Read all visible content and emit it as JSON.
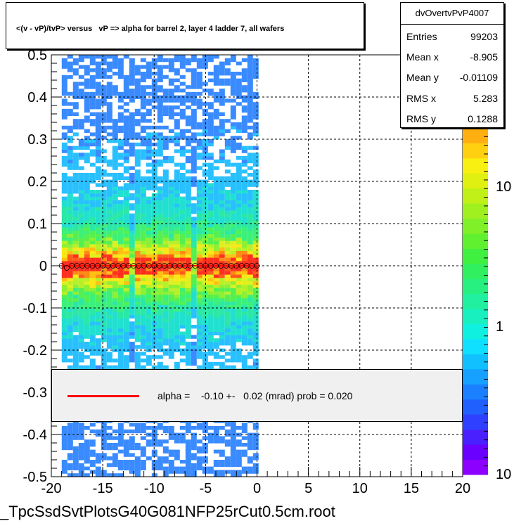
{
  "title": "<(v - vP)/tvP> versus   vP => alpha for barrel 2, layer 4 ladder 7, all wafers",
  "stats": {
    "name": "dvOvertvPvP4007",
    "rows": [
      {
        "key": "Entries",
        "value": "99203"
      },
      {
        "key": "Mean x",
        "value": "-8.905"
      },
      {
        "key": "Mean y",
        "value": "-0.01109"
      },
      {
        "key": "RMS x",
        "value": "5.283"
      },
      {
        "key": "RMS y",
        "value": "0.1288"
      }
    ]
  },
  "legend": {
    "text": "alpha =    -0.10 +-   0.02 (mrad) prob = 0.020",
    "line_color": "#ff0000"
  },
  "footer": "_TpcSsdSvtPlotsG40G081NFP25rCut0.5cm.root",
  "chart_data": {
    "type": "heatmap",
    "xlim": [
      -20,
      20
    ],
    "ylim": [
      -0.5,
      0.5
    ],
    "x_ticks": [
      "-20",
      "-15",
      "-10",
      "-5",
      "0",
      "5",
      "10",
      "15",
      "20"
    ],
    "y_ticks": [
      "0.5",
      "0.4",
      "0.3",
      "0.2",
      "0.1",
      "0",
      "-0.1",
      "-0.2",
      "-0.3",
      "-0.4",
      "-0.5"
    ],
    "grid": true,
    "colorbar_labels": [
      "10",
      "1",
      "10"
    ],
    "filled_x_range": [
      -19,
      0
    ],
    "profile_x": [
      -19.0,
      -18.5,
      -18.0,
      -17.5,
      -17.0,
      -16.5,
      -16.0,
      -15.5,
      -15.0,
      -14.5,
      -14.0,
      -13.5,
      -13.0,
      -12.5,
      -12.0,
      -11.5,
      -11.0,
      -10.5,
      -10.0,
      -9.5,
      -9.0,
      -8.5,
      -8.0,
      -7.5,
      -7.0,
      -6.5,
      -6.0,
      -5.5,
      -5.0,
      -4.5,
      -4.0,
      -3.5,
      -3.0,
      -2.5,
      -2.0,
      -1.5,
      -1.0,
      -0.5,
      0.0
    ],
    "profile_y": [
      0.0,
      -0.005,
      0.0,
      0.0,
      0.0,
      0.0,
      0.0,
      0.0,
      0.0,
      0.0,
      0.0,
      0.0,
      0.0,
      0.0,
      0.0,
      0.0,
      0.0,
      0.0,
      0.0,
      0.0,
      0.0,
      0.0,
      0.0,
      0.0,
      0.0,
      0.0,
      0.0,
      0.0,
      0.0,
      0.0,
      0.0,
      0.0,
      0.0,
      0.0,
      0.0,
      0.0,
      0.0,
      0.0,
      0.0
    ],
    "fit_line": {
      "x": [
        -19,
        0
      ],
      "y": [
        0.0,
        0.0
      ],
      "color": "#ff0000"
    }
  }
}
